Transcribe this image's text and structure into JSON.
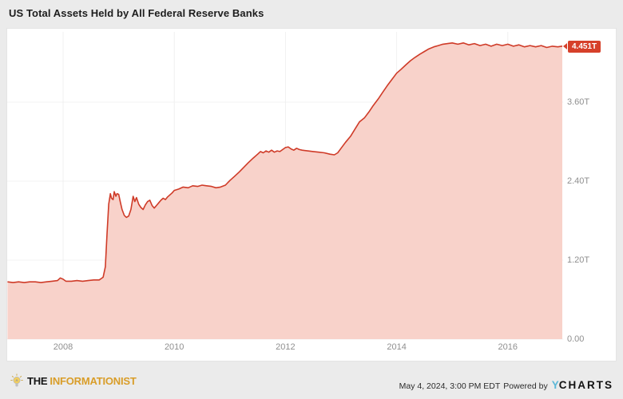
{
  "title": "US Total Assets Held by All Federal Reserve Banks",
  "footer": {
    "brand_the": "THE",
    "brand_name": "INFORMATIONIST",
    "timestamp": "May 4, 2024, 3:00 PM EDT",
    "powered_by": "Powered by",
    "ycharts_y": "Y",
    "ycharts_rest": "CHARTS"
  },
  "chart_data": {
    "type": "area",
    "title": "US Total Assets Held by All Federal Reserve Banks",
    "unit": "USD trillions",
    "x_range": [
      2007.0,
      2017.0
    ],
    "y_range": [
      0,
      4.73
    ],
    "grid": true,
    "legend": false,
    "line_color": "#cf3b28",
    "fill_color": "#f8d2ca",
    "badge_color": "#d6402a",
    "last_point_label": "4.451T",
    "x_ticks": [
      {
        "value": 2008,
        "label": "2008"
      },
      {
        "value": 2010,
        "label": "2010"
      },
      {
        "value": 2012,
        "label": "2012"
      },
      {
        "value": 2014,
        "label": "2014"
      },
      {
        "value": 2016,
        "label": "2016"
      }
    ],
    "y_ticks": [
      {
        "value": 0.0,
        "label": "0.00"
      },
      {
        "value": 1.2,
        "label": "1.20T"
      },
      {
        "value": 2.4,
        "label": "2.40T"
      },
      {
        "value": 3.6,
        "label": "3.60T"
      }
    ],
    "points": [
      [
        2007.0,
        0.87
      ],
      [
        2007.1,
        0.86
      ],
      [
        2007.2,
        0.87
      ],
      [
        2007.3,
        0.86
      ],
      [
        2007.4,
        0.87
      ],
      [
        2007.5,
        0.87
      ],
      [
        2007.6,
        0.86
      ],
      [
        2007.7,
        0.87
      ],
      [
        2007.8,
        0.88
      ],
      [
        2007.9,
        0.89
      ],
      [
        2007.95,
        0.93
      ],
      [
        2008.0,
        0.91
      ],
      [
        2008.05,
        0.88
      ],
      [
        2008.15,
        0.88
      ],
      [
        2008.25,
        0.89
      ],
      [
        2008.35,
        0.88
      ],
      [
        2008.45,
        0.89
      ],
      [
        2008.55,
        0.9
      ],
      [
        2008.65,
        0.9
      ],
      [
        2008.72,
        0.94
      ],
      [
        2008.76,
        1.1
      ],
      [
        2008.79,
        1.6
      ],
      [
        2008.82,
        2.05
      ],
      [
        2008.85,
        2.21
      ],
      [
        2008.87,
        2.14
      ],
      [
        2008.9,
        2.12
      ],
      [
        2008.92,
        2.24
      ],
      [
        2008.95,
        2.17
      ],
      [
        2008.97,
        2.21
      ],
      [
        2009.0,
        2.2
      ],
      [
        2009.03,
        2.08
      ],
      [
        2009.06,
        1.97
      ],
      [
        2009.1,
        1.88
      ],
      [
        2009.14,
        1.85
      ],
      [
        2009.18,
        1.87
      ],
      [
        2009.22,
        1.97
      ],
      [
        2009.26,
        2.17
      ],
      [
        2009.29,
        2.09
      ],
      [
        2009.32,
        2.15
      ],
      [
        2009.36,
        2.05
      ],
      [
        2009.4,
        2.0
      ],
      [
        2009.44,
        1.97
      ],
      [
        2009.48,
        2.04
      ],
      [
        2009.52,
        2.09
      ],
      [
        2009.56,
        2.11
      ],
      [
        2009.6,
        2.03
      ],
      [
        2009.64,
        1.99
      ],
      [
        2009.68,
        2.03
      ],
      [
        2009.72,
        2.07
      ],
      [
        2009.76,
        2.11
      ],
      [
        2009.8,
        2.14
      ],
      [
        2009.84,
        2.12
      ],
      [
        2009.88,
        2.16
      ],
      [
        2009.92,
        2.19
      ],
      [
        2009.96,
        2.22
      ],
      [
        2010.0,
        2.26
      ],
      [
        2010.08,
        2.28
      ],
      [
        2010.16,
        2.31
      ],
      [
        2010.25,
        2.3
      ],
      [
        2010.33,
        2.33
      ],
      [
        2010.42,
        2.32
      ],
      [
        2010.5,
        2.34
      ],
      [
        2010.58,
        2.33
      ],
      [
        2010.67,
        2.32
      ],
      [
        2010.75,
        2.3
      ],
      [
        2010.83,
        2.31
      ],
      [
        2010.92,
        2.34
      ],
      [
        2011.0,
        2.41
      ],
      [
        2011.08,
        2.47
      ],
      [
        2011.17,
        2.54
      ],
      [
        2011.25,
        2.61
      ],
      [
        2011.33,
        2.68
      ],
      [
        2011.42,
        2.75
      ],
      [
        2011.5,
        2.81
      ],
      [
        2011.55,
        2.85
      ],
      [
        2011.6,
        2.83
      ],
      [
        2011.65,
        2.86
      ],
      [
        2011.7,
        2.84
      ],
      [
        2011.75,
        2.87
      ],
      [
        2011.8,
        2.84
      ],
      [
        2011.85,
        2.86
      ],
      [
        2011.9,
        2.85
      ],
      [
        2011.95,
        2.88
      ],
      [
        2012.0,
        2.91
      ],
      [
        2012.05,
        2.92
      ],
      [
        2012.1,
        2.89
      ],
      [
        2012.15,
        2.87
      ],
      [
        2012.2,
        2.9
      ],
      [
        2012.25,
        2.88
      ],
      [
        2012.3,
        2.87
      ],
      [
        2012.4,
        2.86
      ],
      [
        2012.5,
        2.85
      ],
      [
        2012.6,
        2.84
      ],
      [
        2012.7,
        2.83
      ],
      [
        2012.8,
        2.81
      ],
      [
        2012.88,
        2.8
      ],
      [
        2012.94,
        2.83
      ],
      [
        2013.0,
        2.9
      ],
      [
        2013.08,
        2.99
      ],
      [
        2013.17,
        3.08
      ],
      [
        2013.25,
        3.19
      ],
      [
        2013.33,
        3.3
      ],
      [
        2013.42,
        3.36
      ],
      [
        2013.5,
        3.45
      ],
      [
        2013.58,
        3.55
      ],
      [
        2013.67,
        3.65
      ],
      [
        2013.75,
        3.75
      ],
      [
        2013.83,
        3.85
      ],
      [
        2013.92,
        3.95
      ],
      [
        2014.0,
        4.04
      ],
      [
        2014.08,
        4.1
      ],
      [
        2014.17,
        4.17
      ],
      [
        2014.25,
        4.23
      ],
      [
        2014.33,
        4.28
      ],
      [
        2014.42,
        4.33
      ],
      [
        2014.5,
        4.37
      ],
      [
        2014.58,
        4.41
      ],
      [
        2014.67,
        4.44
      ],
      [
        2014.75,
        4.46
      ],
      [
        2014.83,
        4.48
      ],
      [
        2014.92,
        4.49
      ],
      [
        2015.0,
        4.5
      ],
      [
        2015.1,
        4.48
      ],
      [
        2015.2,
        4.5
      ],
      [
        2015.3,
        4.47
      ],
      [
        2015.4,
        4.49
      ],
      [
        2015.5,
        4.46
      ],
      [
        2015.6,
        4.48
      ],
      [
        2015.7,
        4.45
      ],
      [
        2015.8,
        4.48
      ],
      [
        2015.9,
        4.46
      ],
      [
        2016.0,
        4.48
      ],
      [
        2016.1,
        4.45
      ],
      [
        2016.2,
        4.47
      ],
      [
        2016.3,
        4.44
      ],
      [
        2016.4,
        4.46
      ],
      [
        2016.5,
        4.44
      ],
      [
        2016.6,
        4.46
      ],
      [
        2016.7,
        4.43
      ],
      [
        2016.8,
        4.45
      ],
      [
        2016.9,
        4.44
      ],
      [
        2016.98,
        4.451
      ]
    ]
  }
}
